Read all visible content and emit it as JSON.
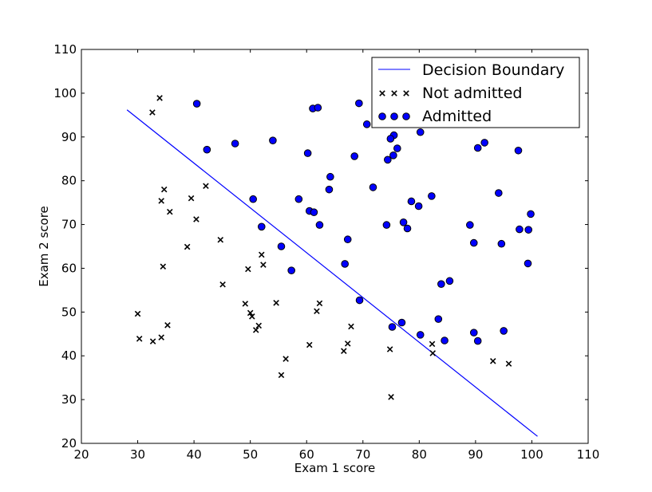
{
  "chart_data": {
    "type": "scatter",
    "title": "",
    "xlabel": "Exam 1 score",
    "ylabel": "Exam 2 score",
    "xlim": [
      20,
      110
    ],
    "ylim": [
      20,
      110
    ],
    "xticks": [
      20,
      30,
      40,
      50,
      60,
      70,
      80,
      90,
      100,
      110
    ],
    "yticks": [
      20,
      30,
      40,
      50,
      60,
      70,
      80,
      90,
      100,
      110
    ],
    "grid": false,
    "legend_position": "top-right",
    "legend": [
      {
        "label": "Decision Boundary",
        "marker": "line"
      },
      {
        "label": "Not admitted",
        "marker": "x"
      },
      {
        "label": "Admitted",
        "marker": "o"
      }
    ],
    "colors": {
      "boundary": "#0000ff",
      "admitted_fill": "#0000ff",
      "marker_edge": "#000000"
    },
    "boundary_line": {
      "name": "Decision Boundary",
      "x": [
        28.1,
        101.0
      ],
      "y": [
        96.2,
        21.6
      ]
    },
    "series": [
      {
        "name": "Not admitted",
        "marker": "x",
        "points": [
          [
            33.9,
            98.9
          ],
          [
            32.6,
            95.6
          ],
          [
            42.1,
            78.8
          ],
          [
            34.7,
            78.0
          ],
          [
            39.5,
            76.0
          ],
          [
            34.2,
            75.4
          ],
          [
            35.7,
            72.9
          ],
          [
            40.4,
            71.2
          ],
          [
            44.7,
            66.5
          ],
          [
            38.8,
            64.9
          ],
          [
            52.0,
            63.1
          ],
          [
            34.5,
            60.4
          ],
          [
            52.3,
            60.8
          ],
          [
            49.6,
            59.8
          ],
          [
            45.1,
            56.3
          ],
          [
            54.6,
            52.1
          ],
          [
            49.1,
            51.9
          ],
          [
            62.3,
            52.0
          ],
          [
            50.0,
            49.8
          ],
          [
            61.8,
            50.2
          ],
          [
            50.3,
            49.0
          ],
          [
            30.0,
            49.6
          ],
          [
            51.5,
            46.9
          ],
          [
            35.3,
            47.0
          ],
          [
            67.9,
            46.7
          ],
          [
            51.0,
            45.9
          ],
          [
            30.3,
            43.9
          ],
          [
            34.2,
            44.2
          ],
          [
            32.7,
            43.3
          ],
          [
            67.3,
            42.8
          ],
          [
            82.3,
            42.7
          ],
          [
            60.5,
            42.5
          ],
          [
            74.8,
            41.5
          ],
          [
            66.6,
            41.1
          ],
          [
            82.4,
            40.6
          ],
          [
            56.3,
            39.3
          ],
          [
            93.1,
            38.8
          ],
          [
            95.9,
            38.2
          ],
          [
            55.5,
            35.6
          ],
          [
            75.0,
            30.6
          ]
        ]
      },
      {
        "name": "Admitted",
        "marker": "o",
        "points": [
          [
            40.5,
            97.6
          ],
          [
            69.3,
            97.7
          ],
          [
            61.1,
            96.5
          ],
          [
            62.0,
            96.7
          ],
          [
            73.9,
            94.4
          ],
          [
            75.6,
            94.7
          ],
          [
            94.2,
            94.3
          ],
          [
            70.7,
            92.9
          ],
          [
            80.2,
            91.1
          ],
          [
            75.5,
            90.4
          ],
          [
            74.9,
            89.6
          ],
          [
            54.0,
            89.2
          ],
          [
            47.3,
            88.5
          ],
          [
            91.6,
            88.7
          ],
          [
            90.4,
            87.5
          ],
          [
            76.1,
            87.4
          ],
          [
            97.6,
            86.9
          ],
          [
            42.3,
            87.1
          ],
          [
            60.2,
            86.3
          ],
          [
            68.5,
            85.6
          ],
          [
            75.4,
            85.8
          ],
          [
            74.4,
            84.8
          ],
          [
            64.2,
            80.9
          ],
          [
            71.8,
            78.5
          ],
          [
            64.0,
            78.0
          ],
          [
            82.2,
            76.5
          ],
          [
            94.1,
            77.2
          ],
          [
            50.5,
            75.8
          ],
          [
            58.6,
            75.8
          ],
          [
            78.6,
            75.3
          ],
          [
            79.9,
            74.2
          ],
          [
            60.5,
            73.1
          ],
          [
            61.3,
            72.8
          ],
          [
            99.8,
            72.4
          ],
          [
            77.2,
            70.5
          ],
          [
            74.2,
            69.9
          ],
          [
            62.3,
            69.9
          ],
          [
            89.0,
            69.9
          ],
          [
            52.0,
            69.5
          ],
          [
            77.9,
            69.1
          ],
          [
            97.8,
            68.9
          ],
          [
            99.4,
            68.8
          ],
          [
            67.3,
            66.6
          ],
          [
            89.7,
            65.8
          ],
          [
            94.6,
            65.6
          ],
          [
            55.5,
            65.0
          ],
          [
            66.8,
            61.0
          ],
          [
            99.3,
            61.1
          ],
          [
            57.3,
            59.5
          ],
          [
            85.4,
            57.1
          ],
          [
            83.9,
            56.4
          ],
          [
            69.4,
            52.7
          ],
          [
            83.4,
            48.4
          ],
          [
            76.9,
            47.6
          ],
          [
            75.2,
            46.6
          ],
          [
            95.0,
            45.7
          ],
          [
            89.7,
            45.3
          ],
          [
            80.2,
            44.8
          ],
          [
            84.5,
            43.5
          ],
          [
            90.4,
            43.4
          ]
        ]
      }
    ]
  }
}
